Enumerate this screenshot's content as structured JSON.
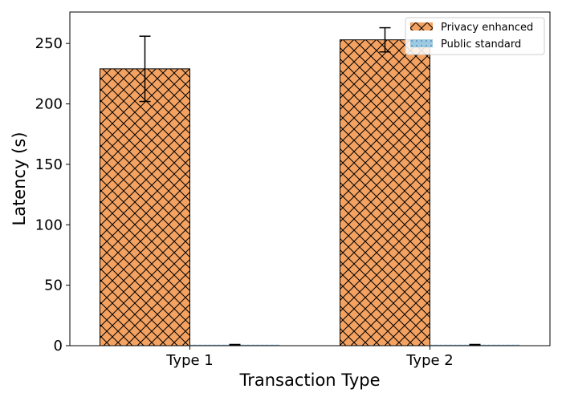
{
  "chart_data": {
    "type": "bar",
    "title": "",
    "xlabel": "Transaction Type",
    "ylabel": "Latency (s)",
    "categories": [
      "Type 1",
      "Type 2"
    ],
    "ylim": [
      0,
      276
    ],
    "yticks": [
      0,
      50,
      100,
      150,
      200,
      250
    ],
    "grid": false,
    "legend_position": "top-right",
    "series": [
      {
        "name": "Privacy enhanced",
        "values": [
          229,
          253
        ],
        "errors": [
          27,
          10
        ],
        "color": "#f4a261",
        "hatch": "crosshatch"
      },
      {
        "name": "Public standard",
        "values": [
          0.8,
          0.8
        ],
        "errors": [
          0.2,
          0.2
        ],
        "color": "#9ecae1",
        "hatch": "dots"
      }
    ]
  }
}
